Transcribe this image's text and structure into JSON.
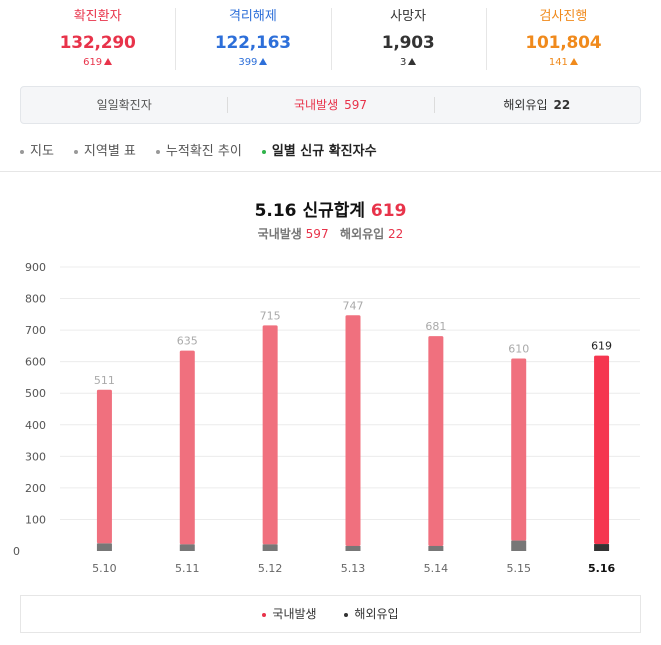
{
  "stats": [
    {
      "label": "확진환자",
      "value": "132,290",
      "change": "619",
      "color": "#e8334a"
    },
    {
      "label": "격리해제",
      "value": "122,163",
      "change": "399",
      "color": "#2d6fd9"
    },
    {
      "label": "사망자",
      "value": "1,903",
      "change": "3",
      "color": "#333333"
    },
    {
      "label": "검사진행",
      "value": "101,804",
      "change": "141",
      "color": "#f08a1c"
    }
  ],
  "subbar": {
    "daily": "일일확진자",
    "domestic_label": "국내발생",
    "domestic_value": "597",
    "overseas_label": "해외유입",
    "overseas_value": "22"
  },
  "tabs": [
    {
      "label": "지도",
      "active": false
    },
    {
      "label": "지역별 표",
      "active": false
    },
    {
      "label": "누적확진 추이",
      "active": false
    },
    {
      "label": "일별 신규 확진자수",
      "active": true
    }
  ],
  "summary": {
    "date": "5.16",
    "title_text": "신규합계",
    "total": "619",
    "domestic_label": "국내발생",
    "domestic_value": "597",
    "overseas_label": "해외유입",
    "overseas_value": "22"
  },
  "legend": {
    "domestic": "국내발생",
    "overseas": "해외유입"
  },
  "colors": {
    "accent_red": "#e8334a",
    "bar_domestic": "#f0707e",
    "bar_domestic_highlight": "#f5364f",
    "bar_overseas": "#777777",
    "bar_overseas_highlight": "#333333"
  },
  "chart_data": {
    "type": "bar",
    "stacked": true,
    "categories": [
      "5.10",
      "5.11",
      "5.12",
      "5.13",
      "5.14",
      "5.15",
      "5.16"
    ],
    "totals": [
      511,
      635,
      715,
      747,
      681,
      610,
      619
    ],
    "series": [
      {
        "name": "국내발생",
        "values": [
          487,
          614,
          694,
          731,
          665,
          577,
          597
        ]
      },
      {
        "name": "해외유입",
        "values": [
          24,
          21,
          21,
          16,
          16,
          33,
          22
        ]
      }
    ],
    "ylim": [
      0,
      900
    ],
    "yticks": [
      0,
      100,
      200,
      300,
      400,
      500,
      600,
      700,
      800,
      900
    ],
    "highlight_index": 6,
    "grid": true
  }
}
